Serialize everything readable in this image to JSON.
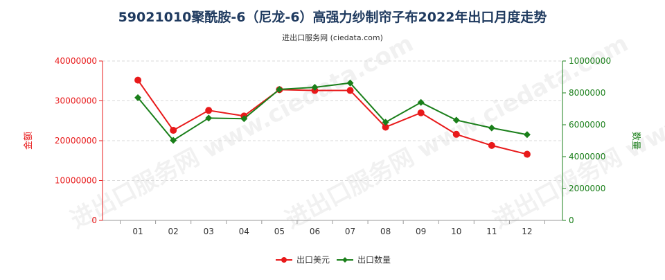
{
  "chart_data": {
    "type": "line",
    "title": "59021010聚酰胺-6（尼龙-6）高强力纱制帘子布2022年出口月度走势",
    "subtitle": "进出口服务网 (ciedata.com)",
    "watermark": "进出口服务网 www.ciedata.com",
    "categories": [
      "01",
      "02",
      "03",
      "04",
      "05",
      "06",
      "07",
      "08",
      "09",
      "10",
      "11",
      "12"
    ],
    "y_left": {
      "label": "金额",
      "ylim": [
        0,
        40000000
      ],
      "ticks": [
        "0",
        "10000000",
        "20000000",
        "30000000",
        "40000000"
      ],
      "tick_values": [
        0,
        10000000,
        20000000,
        30000000,
        40000000
      ]
    },
    "y_right": {
      "label": "数量",
      "ylim": [
        0,
        10000000
      ],
      "ticks": [
        "0",
        "2000000",
        "4000000",
        "6000000",
        "8000000",
        "10000000"
      ],
      "tick_values": [
        0,
        2000000,
        4000000,
        6000000,
        8000000,
        10000000
      ]
    },
    "series": [
      {
        "name": "出口美元",
        "axis": "left",
        "color": "#e8191a",
        "marker": "circle",
        "values": [
          35200000,
          22600000,
          27600000,
          26200000,
          32800000,
          32600000,
          32600000,
          23400000,
          27000000,
          21600000,
          18800000,
          16600000
        ]
      },
      {
        "name": "出口数量",
        "axis": "right",
        "color": "#1a7f1a",
        "marker": "diamond",
        "values": [
          7700000,
          5020000,
          6420000,
          6380000,
          8220000,
          8350000,
          8620000,
          6160000,
          7400000,
          6290000,
          5800000,
          5380000
        ]
      }
    ],
    "grid": "horizontal",
    "legend_position": "bottom-center"
  }
}
